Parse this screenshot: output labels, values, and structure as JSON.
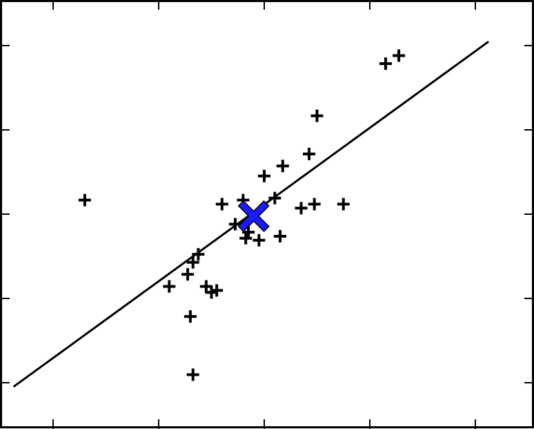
{
  "chart_data": {
    "type": "scatter",
    "title": "",
    "xlabel": "",
    "ylabel": "",
    "xlim": [
      -5,
      5.5
    ],
    "ylim": [
      -3.5,
      5.8
    ],
    "grid": false,
    "legend": "none",
    "series": [
      {
        "marker": "plus",
        "color": "#000000",
        "points": [
          {
            "x": -3.4,
            "y": 1.95
          },
          {
            "x": -1.8,
            "y": -0.2
          },
          {
            "x": -1.45,
            "y": -0.2
          },
          {
            "x": -1.3,
            "y": -0.45
          },
          {
            "x": -1.25,
            "y": 0.35
          },
          {
            "x": -1.1,
            "y": 0.6
          },
          {
            "x": -1.0,
            "y": 0.35
          },
          {
            "x": -0.7,
            "y": 1.85
          },
          {
            "x": -0.6,
            "y": 1.05
          },
          {
            "x": -0.55,
            "y": 0.75
          },
          {
            "x": -0.35,
            "y": 0.15
          },
          {
            "x": -0.2,
            "y": 1.2
          },
          {
            "x": -0.1,
            "y": 1.35
          },
          {
            "x": 0.0,
            "y": 2.2
          },
          {
            "x": 0.05,
            "y": 1.55
          },
          {
            "x": 0.25,
            "y": 1.6
          },
          {
            "x": 0.35,
            "y": 1.65
          },
          {
            "x": 0.45,
            "y": 2.0
          },
          {
            "x": 0.55,
            "y": 2.55
          },
          {
            "x": 0.6,
            "y": 1.3
          },
          {
            "x": 0.6,
            "y": 3.5
          },
          {
            "x": 0.85,
            "y": 3.15
          },
          {
            "x": 0.65,
            "y": 2.8
          },
          {
            "x": 0.8,
            "y": 4.6
          },
          {
            "x": 0.85,
            "y": 4.85
          },
          {
            "x": 1.05,
            "y": 1.9
          },
          {
            "x": 1.3,
            "y": 1.9
          },
          {
            "x": 1.5,
            "y": 4.0
          },
          {
            "x": 1.7,
            "y": 1.8
          },
          {
            "x": 2.5,
            "y": 5.35
          },
          {
            "x": 2.7,
            "y": 5.6
          }
        ]
      }
    ],
    "points": [
      {
        "x": -3.4,
        "y": 1.95
      },
      {
        "x": -1.8,
        "y": -0.2
      },
      {
        "x": -1.45,
        "y": 0.1
      },
      {
        "x": -1.35,
        "y": 0.4
      },
      {
        "x": -1.25,
        "y": 0.6
      },
      {
        "x": -1.1,
        "y": -0.2
      },
      {
        "x": -1.0,
        "y": -0.35
      },
      {
        "x": -0.9,
        "y": -0.3
      },
      {
        "x": -1.4,
        "y": -0.95
      },
      {
        "x": -1.35,
        "y": -2.4
      },
      {
        "x": -0.8,
        "y": 1.85
      },
      {
        "x": -0.4,
        "y": 1.95
      },
      {
        "x": -0.35,
        "y": 1.0
      },
      {
        "x": -0.1,
        "y": 0.95
      },
      {
        "x": 0.0,
        "y": 2.55
      },
      {
        "x": 0.35,
        "y": 2.8
      },
      {
        "x": 0.3,
        "y": 1.05
      },
      {
        "x": 0.2,
        "y": 2.0
      },
      {
        "x": 0.7,
        "y": 1.75
      },
      {
        "x": 0.95,
        "y": 1.85
      },
      {
        "x": 1.5,
        "y": 1.85
      },
      {
        "x": 0.85,
        "y": 3.1
      },
      {
        "x": 1.0,
        "y": 4.05
      },
      {
        "x": 2.3,
        "y": 5.35
      },
      {
        "x": 2.55,
        "y": 5.55
      },
      {
        "x": -0.55,
        "y": 1.35
      },
      {
        "x": -0.3,
        "y": 1.15
      }
    ],
    "centroid": {
      "x": -0.2,
      "y": 1.55,
      "marker": "x",
      "color": "#1a1aff"
    },
    "fit_line": {
      "x": [
        -4.75,
        4.25
      ],
      "y": [
        -2.7,
        5.9
      ]
    },
    "x_ticks": [
      -4,
      -2,
      0,
      2,
      4
    ],
    "y_ticks": [
      -2.6,
      -0.5,
      1.6,
      3.7,
      5.8
    ]
  }
}
